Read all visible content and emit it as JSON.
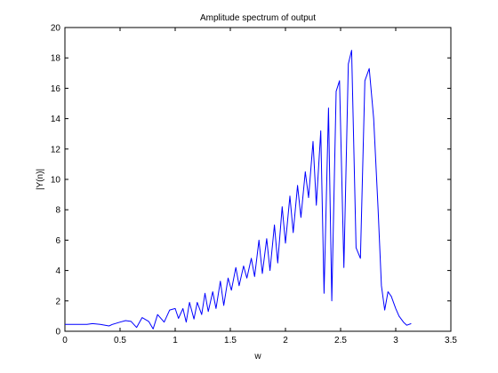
{
  "chart_data": {
    "type": "line",
    "title": "Amplitude spectrum of output",
    "xlabel": "w",
    "ylabel": "|Y(n)|",
    "xlim": [
      0,
      3.5
    ],
    "ylim": [
      0,
      20
    ],
    "xticks": [
      0,
      0.5,
      1,
      1.5,
      2,
      2.5,
      3,
      3.5
    ],
    "xtick_labels": [
      "0",
      "0.5",
      "1",
      "1.5",
      "2",
      "2.5",
      "3",
      "3.5"
    ],
    "yticks": [
      0,
      2,
      4,
      6,
      8,
      10,
      12,
      14,
      16,
      18,
      20
    ],
    "ytick_labels": [
      "0",
      "2",
      "4",
      "6",
      "8",
      "10",
      "12",
      "14",
      "16",
      "18",
      "20"
    ],
    "grid": false,
    "legend": "none",
    "series": [
      {
        "color": "#0000ff",
        "x": [
          0,
          0.1,
          0.2,
          0.25,
          0.32,
          0.4,
          0.43,
          0.5,
          0.55,
          0.6,
          0.65,
          0.7,
          0.76,
          0.8,
          0.84,
          0.9,
          0.95,
          1.0,
          1.03,
          1.07,
          1.1,
          1.13,
          1.17,
          1.2,
          1.24,
          1.27,
          1.3,
          1.34,
          1.37,
          1.41,
          1.44,
          1.48,
          1.51,
          1.55,
          1.58,
          1.62,
          1.65,
          1.69,
          1.72,
          1.76,
          1.79,
          1.83,
          1.86,
          1.9,
          1.93,
          1.97,
          2.0,
          2.04,
          2.07,
          2.11,
          2.14,
          2.18,
          2.21,
          2.25,
          2.28,
          2.32,
          2.35,
          2.39,
          2.42,
          2.46,
          2.49,
          2.53,
          2.57,
          2.6,
          2.64,
          2.68,
          2.72,
          2.76,
          2.8,
          2.84,
          2.87,
          2.9,
          2.93,
          2.96,
          3.0,
          3.03,
          3.07,
          3.1,
          3.14
        ],
        "y": [
          0.45,
          0.45,
          0.45,
          0.5,
          0.45,
          0.35,
          0.45,
          0.6,
          0.7,
          0.65,
          0.25,
          0.9,
          0.65,
          0.15,
          1.1,
          0.6,
          1.4,
          1.5,
          0.85,
          1.5,
          0.6,
          1.9,
          0.8,
          1.9,
          1.1,
          2.5,
          1.3,
          2.6,
          1.5,
          3.3,
          1.7,
          3.5,
          2.7,
          4.2,
          3.0,
          4.3,
          3.5,
          4.8,
          3.6,
          6.0,
          3.8,
          6.1,
          4.0,
          7.0,
          4.5,
          8.2,
          5.8,
          8.9,
          6.5,
          9.6,
          7.5,
          10.5,
          8.8,
          12.5,
          8.3,
          13.2,
          2.5,
          14.7,
          2.0,
          15.8,
          16.5,
          4.2,
          17.6,
          18.5,
          5.5,
          4.8,
          16.5,
          17.3,
          14.0,
          8.0,
          3.0,
          1.4,
          2.6,
          2.3,
          1.5,
          1.0,
          0.6,
          0.4,
          0.5
        ]
      }
    ]
  }
}
